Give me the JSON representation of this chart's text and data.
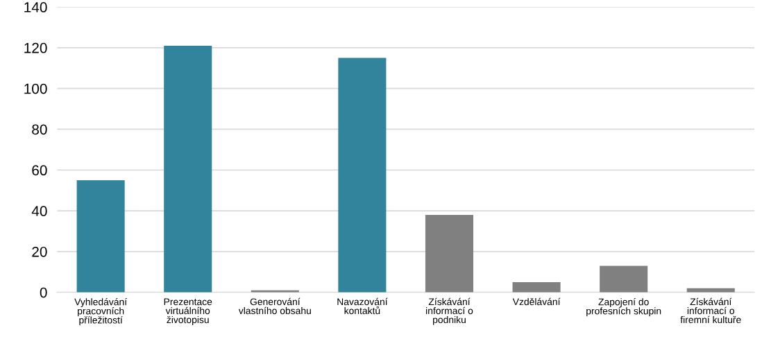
{
  "chart_data": {
    "type": "bar",
    "categories": [
      "Vyhledávání\npracovních\npříležitostí",
      "Prezentace\nvirtuálního\nživotopisu",
      "Generování\nvlastního obsahu",
      "Navazování\nkontaktů",
      "Získávání\ninformací o\npodniku",
      "Vzdělávání",
      "Zapojení do\nprofesních skupin",
      "Získávání\ninformací o\nfiremní kultuře"
    ],
    "values": [
      55,
      121,
      1,
      115,
      38,
      5,
      13,
      2
    ],
    "colors": [
      "#31849b",
      "#31849b",
      "#808080",
      "#31849b",
      "#808080",
      "#808080",
      "#808080",
      "#808080"
    ],
    "ylim": [
      0,
      140
    ],
    "yticks": [
      0,
      20,
      40,
      60,
      80,
      100,
      120,
      140
    ],
    "grid": "y"
  }
}
